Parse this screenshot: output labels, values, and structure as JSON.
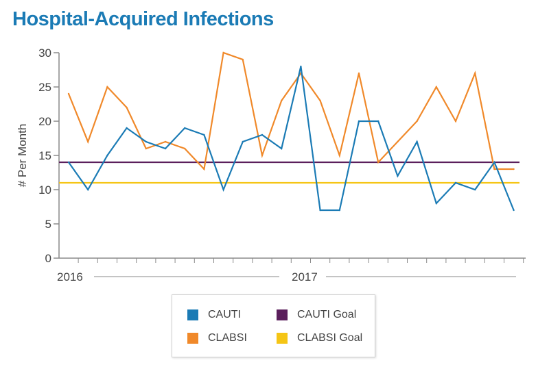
{
  "title": "Hospital-Acquired Infections",
  "chart_data": {
    "type": "line",
    "ylabel": "# Per Month",
    "ylim": [
      0,
      30
    ],
    "yticks": [
      0,
      5,
      10,
      15,
      20,
      25,
      30
    ],
    "year_labels": [
      "2016",
      "2017"
    ],
    "grid": false,
    "legend_position": "bottom-center",
    "series": [
      {
        "name": "CAUTI",
        "color": "#1b7bb5",
        "values": [
          14,
          10,
          15,
          19,
          17,
          16,
          19,
          18,
          10,
          17,
          18,
          16,
          28,
          7,
          7,
          20,
          20,
          12,
          17,
          8,
          11,
          10,
          14,
          7
        ]
      },
      {
        "name": "CLABSI",
        "color": "#f0892a",
        "values": [
          24,
          17,
          25,
          22,
          16,
          17,
          16,
          13,
          30,
          29,
          15,
          23,
          27,
          23,
          15,
          27,
          14,
          17,
          20,
          25,
          20,
          27,
          13,
          13
        ]
      },
      {
        "name": "CAUTI Goal",
        "color": "#5b1f5c",
        "value": 14
      },
      {
        "name": "CLABSI Goal",
        "color": "#f5c515",
        "value": 11
      }
    ]
  }
}
